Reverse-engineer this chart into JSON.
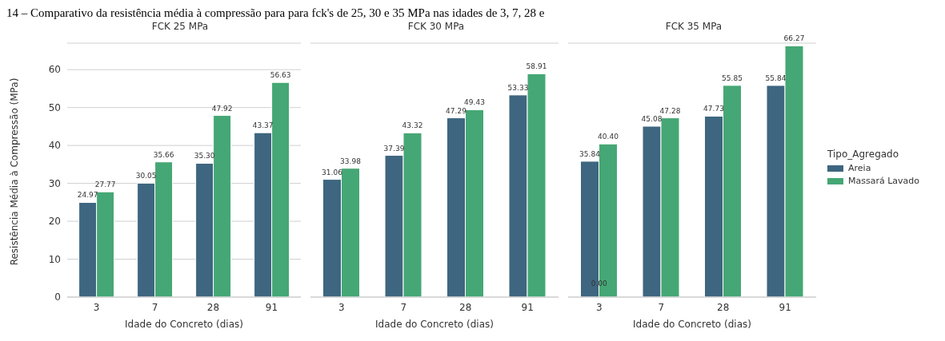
{
  "chart_data": [
    {
      "type": "bar",
      "title": "FCK 25 MPa",
      "annotations": [
        "14 – Comparativo da resistência média à compressão para para fck's de 25, 30 e 35 MPa nas idades de 3, 7, 28 e"
      ],
      "xlabel": "Idade do Concreto (dias)",
      "ylabel": "Resistência Média à Compressão (MPa)",
      "categories": [
        "3",
        "7",
        "28",
        "91"
      ],
      "series": [
        {
          "color": "#3e6680",
          "values": [
            24.97,
            30.05,
            35.3,
            43.37
          ],
          "value_labels": [
            "24.97",
            "30.05",
            "35.30",
            "43.37"
          ]
        },
        {
          "color": "#45a775",
          "values": [
            27.77,
            35.66,
            47.92,
            56.63
          ],
          "value_labels": [
            "27.77",
            "35.66",
            "47.92",
            "56.63"
          ]
        }
      ],
      "ylim": [
        0,
        67
      ],
      "yticks": [
        0,
        10,
        20,
        30,
        40,
        50,
        60
      ],
      "grid": "y",
      "legend": false
    },
    {
      "type": "bar",
      "title": "FCK 30 MPa",
      "xlabel": "Idade do Concreto (dias)",
      "categories": [
        "3",
        "7",
        "28",
        "91"
      ],
      "series": [
        {
          "color": "#3e6680",
          "values": [
            31.06,
            37.39,
            47.29,
            53.33
          ],
          "value_labels": [
            "31.06",
            "37.39",
            "47.29",
            "53.33"
          ]
        },
        {
          "color": "#45a775",
          "values": [
            33.98,
            43.32,
            49.43,
            58.91
          ],
          "value_labels": [
            "33.98",
            "43.32",
            "49.43",
            "58.91"
          ]
        }
      ],
      "ylim": [
        0,
        67
      ],
      "yticks": [
        0,
        10,
        20,
        30,
        40,
        50,
        60
      ],
      "grid": "y",
      "legend": false,
      "tick_labels": "x"
    },
    {
      "type": "bar",
      "title": "FCK 35 MPa",
      "xlabel": "Idade do Concreto (dias)",
      "categories": [
        "3",
        "7",
        "28",
        "91"
      ],
      "legend_title": "Tipo_Agregado",
      "series": [
        {
          "name": "Areia",
          "color": "#3e6680",
          "values": [
            35.84,
            45.08,
            47.73,
            55.84
          ],
          "value_labels": [
            "35.84",
            "45.08",
            "47.73",
            "55.84"
          ]
        },
        {
          "name": "Massará Lavado",
          "color": "#45a775",
          "values": [
            40.4,
            47.28,
            55.85,
            66.27
          ],
          "value_labels": [
            "40.40",
            "47.28",
            "55.85",
            "66.27"
          ]
        }
      ],
      "annotations": [
        {
          "text": "0.00",
          "x": "3",
          "y": 0
        }
      ],
      "ylim": [
        0,
        67
      ],
      "yticks": [
        0,
        10,
        20,
        30,
        40,
        50,
        60
      ],
      "grid": "y",
      "legend": "right",
      "tick_labels": "x"
    }
  ]
}
